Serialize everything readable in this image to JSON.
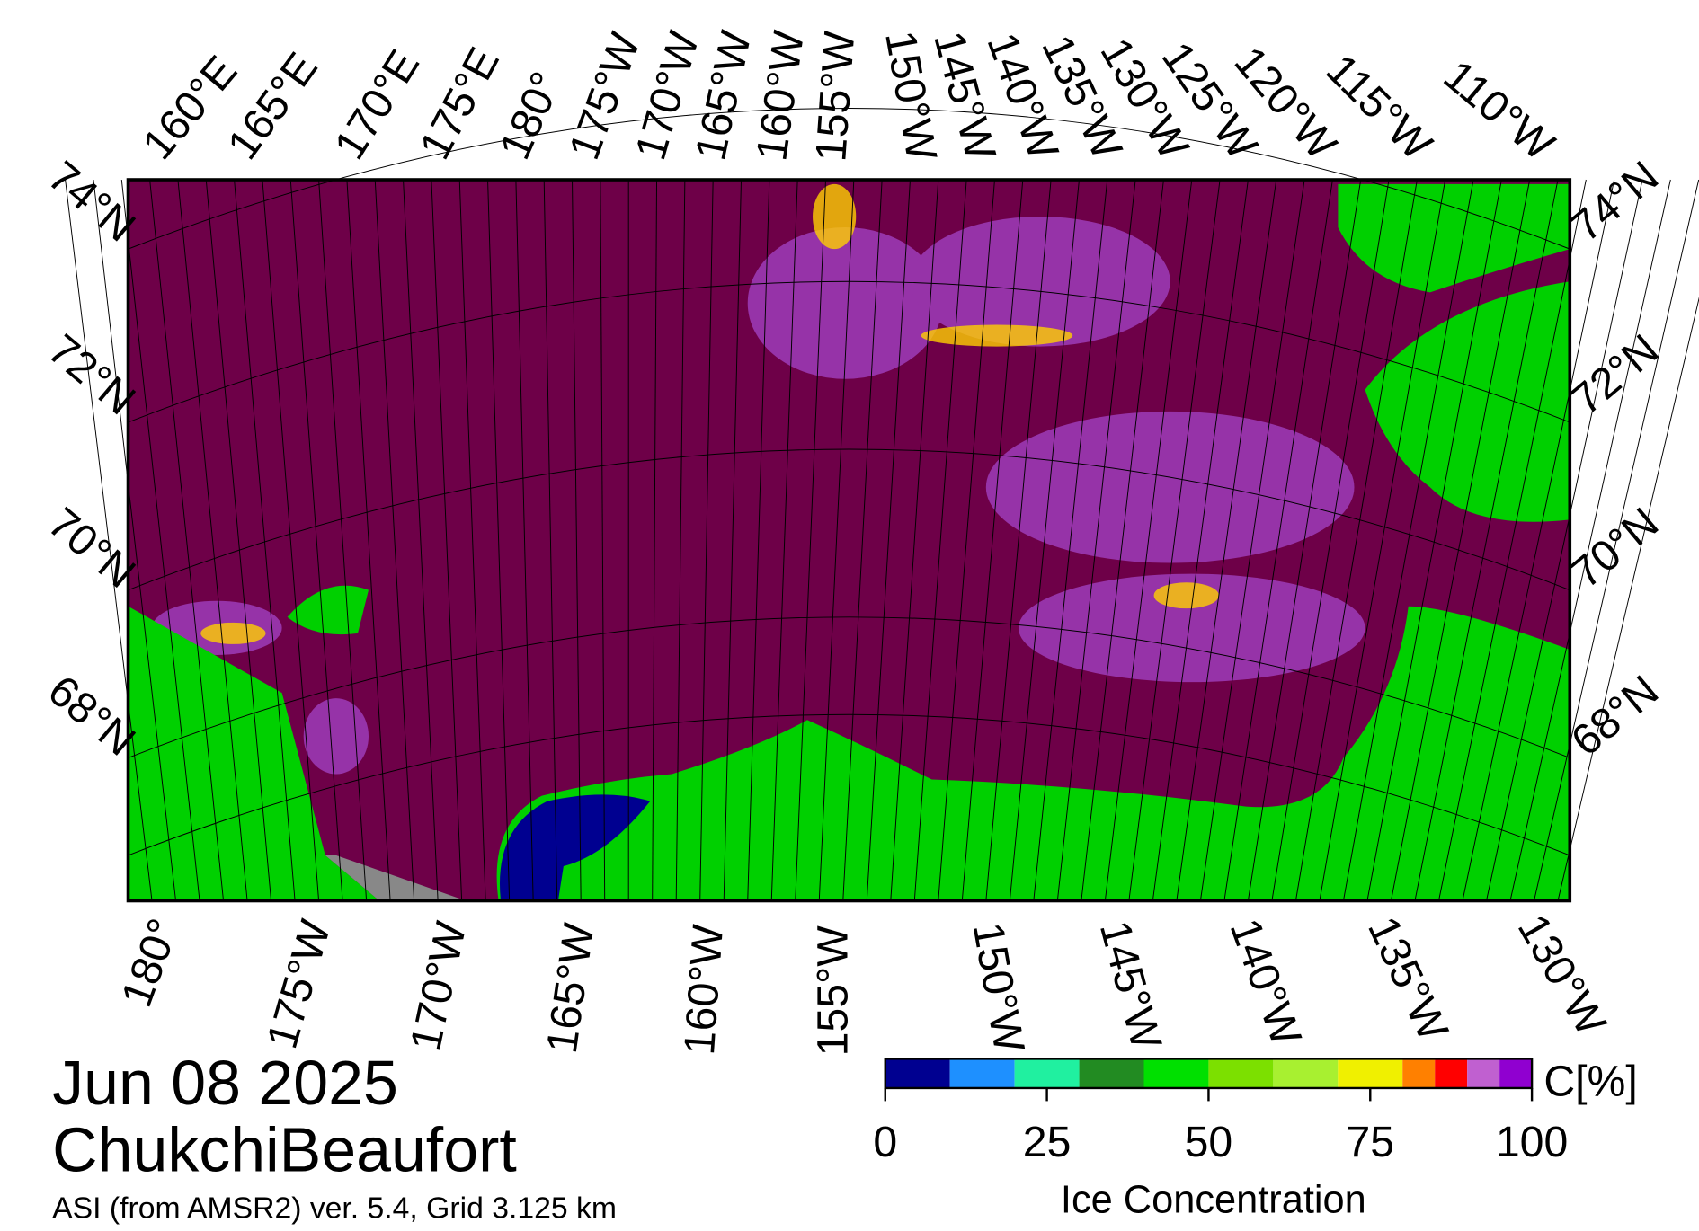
{
  "map": {
    "date": "Jun 08 2025",
    "region": "ChukchiBeaufort",
    "subtitle": "ASI (from AMSR2) ver. 5.4,  Grid 3.125 km",
    "top_longitudes": [
      "160°E",
      "165°E",
      "170°E",
      "175°E",
      "180°",
      "175°W",
      "170°W",
      "165°W",
      "160°W",
      "155°W",
      "150°W",
      "145°W",
      "140°W",
      "135°W",
      "130°W",
      "125°W",
      "120°W",
      "115°W",
      "110°W"
    ],
    "bottom_longitudes": [
      "180°",
      "175°W",
      "170°W",
      "165°W",
      "160°W",
      "155°W",
      "150°W",
      "145°W",
      "140°W",
      "135°W",
      "130°W"
    ],
    "left_latitudes": [
      "74°N",
      "72°N",
      "70°N",
      "68°N"
    ],
    "right_latitudes": [
      "74°N",
      "72°N",
      "70°N",
      "68°N"
    ]
  },
  "colorbar": {
    "label": "Ice Concentration",
    "unit": "C[%]",
    "lim": [
      0,
      100
    ],
    "ticks": [
      0,
      25,
      50,
      75,
      100
    ],
    "bounds": [
      0,
      10,
      20,
      30,
      40,
      50,
      60,
      70,
      80,
      85,
      90,
      95,
      100
    ],
    "colors": [
      "#000090",
      "#1e90ff",
      "#20f0a0",
      "#228b22",
      "#00e000",
      "#7ce000",
      "#a8f030",
      "#f0f000",
      "#ff8000",
      "#ff0000",
      "#c060d0",
      "#9000d0"
    ]
  }
}
